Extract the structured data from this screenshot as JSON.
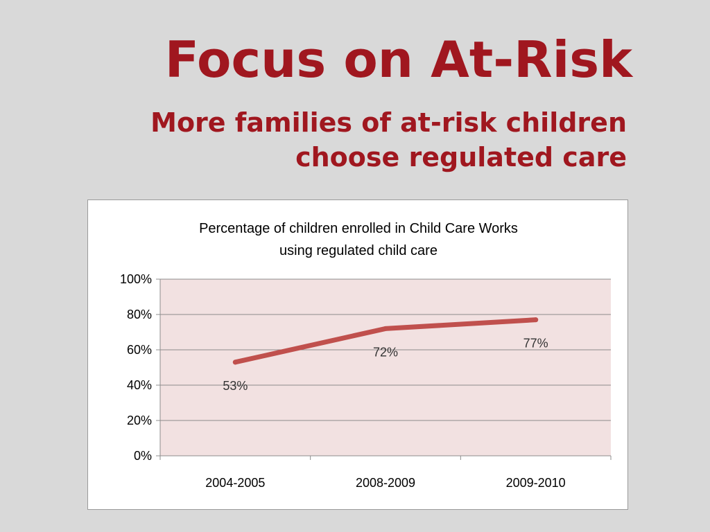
{
  "slide": {
    "title": "Focus on At-Risk",
    "subtitle_line1": "More families of at-risk children",
    "subtitle_line2": "choose regulated care"
  },
  "colors": {
    "title": "#a0171f",
    "line": "#c0504d",
    "plot_background": "#f2e1e1",
    "background": "#d9d9d9"
  },
  "chart_data": {
    "type": "line",
    "title_line1": "Percentage of children enrolled in Child Care Works",
    "title_line2": "using regulated child care",
    "categories": [
      "2004-2005",
      "2008-2009",
      "2009-2010"
    ],
    "values": [
      53,
      72,
      77
    ],
    "data_labels": [
      "53%",
      "72%",
      "77%"
    ],
    "y_ticks": [
      "0%",
      "20%",
      "40%",
      "60%",
      "80%",
      "100%"
    ],
    "ylim": [
      0,
      100
    ],
    "xlabel": "",
    "ylabel": "",
    "grid": true,
    "legend": "none"
  }
}
